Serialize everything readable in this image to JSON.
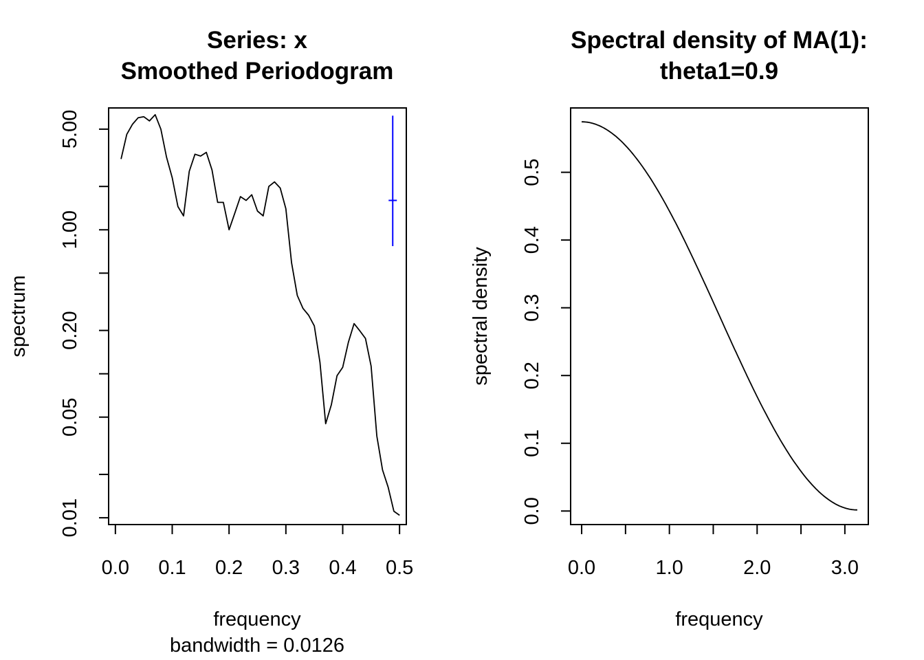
{
  "chart_data": [
    {
      "type": "line",
      "title": [
        "Series: x",
        "Smoothed Periodogram"
      ],
      "xlabel": "frequency",
      "xsublabel": "bandwidth = 0.0126",
      "ylabel": "spectrum",
      "y_scale": "log",
      "xlim": [
        0,
        0.5
      ],
      "ylim": [
        0.009,
        7
      ],
      "x_ticks": [
        "0.0",
        "0.1",
        "0.2",
        "0.3",
        "0.4",
        "0.5"
      ],
      "x_tick_values": [
        0,
        0.1,
        0.2,
        0.3,
        0.4,
        0.5
      ],
      "y_ticks": [
        "0.01",
        "",
        "0.05",
        "",
        "0.20",
        "",
        "1.00",
        "",
        "5.00"
      ],
      "y_tick_values": [
        0.01,
        0.02,
        0.05,
        0.1,
        0.2,
        0.5,
        1,
        2,
        5
      ],
      "grid": false,
      "series": [
        {
          "x": [
            0.01,
            0.02,
            0.03,
            0.04,
            0.05,
            0.06,
            0.07,
            0.08,
            0.09,
            0.1,
            0.11,
            0.12,
            0.13,
            0.14,
            0.15,
            0.16,
            0.17,
            0.18,
            0.19,
            0.2,
            0.21,
            0.22,
            0.23,
            0.24,
            0.25,
            0.26,
            0.27,
            0.28,
            0.29,
            0.3,
            0.31,
            0.32,
            0.33,
            0.34,
            0.35,
            0.36,
            0.37,
            0.38,
            0.39,
            0.4,
            0.41,
            0.42,
            0.43,
            0.44,
            0.45,
            0.46,
            0.47,
            0.48,
            0.49,
            0.5
          ],
          "y": [
            3.1,
            4.6,
            5.4,
            6.0,
            6.1,
            5.7,
            6.3,
            5.0,
            3.2,
            2.3,
            1.45,
            1.25,
            2.55,
            3.35,
            3.25,
            3.45,
            2.6,
            1.55,
            1.55,
            1.0,
            1.3,
            1.7,
            1.6,
            1.75,
            1.35,
            1.25,
            2.0,
            2.15,
            1.95,
            1.4,
            0.59,
            0.35,
            0.285,
            0.255,
            0.215,
            0.12,
            0.045,
            0.061,
            0.097,
            0.111,
            0.166,
            0.223,
            0.199,
            0.176,
            0.113,
            0.037,
            0.0215,
            0.0163,
            0.0111,
            0.0104
          ]
        }
      ],
      "ci_bar": {
        "x": 0.488,
        "y_center": 1.6,
        "y_low": 0.77,
        "y_high": 6.2,
        "color": "#0000ff"
      }
    },
    {
      "type": "line",
      "title": [
        "Spectral density of MA(1):",
        "theta1=0.9"
      ],
      "xlabel": "frequency",
      "ylabel": "spectral density",
      "xlim": [
        0,
        3.1416
      ],
      "ylim": [
        0,
        0.57
      ],
      "x_ticks": [
        "0.0",
        "",
        "1.0",
        "",
        "2.0",
        "",
        "3.0"
      ],
      "x_tick_values": [
        0,
        0.5,
        1,
        1.5,
        2,
        2.5,
        3
      ],
      "y_ticks": [
        "0.0",
        "0.1",
        "0.2",
        "0.3",
        "0.4",
        "0.5"
      ],
      "y_tick_values": [
        0,
        0.1,
        0.2,
        0.3,
        0.4,
        0.5
      ],
      "grid": false,
      "series": [
        {
          "theta1": 0.9
        }
      ]
    }
  ]
}
